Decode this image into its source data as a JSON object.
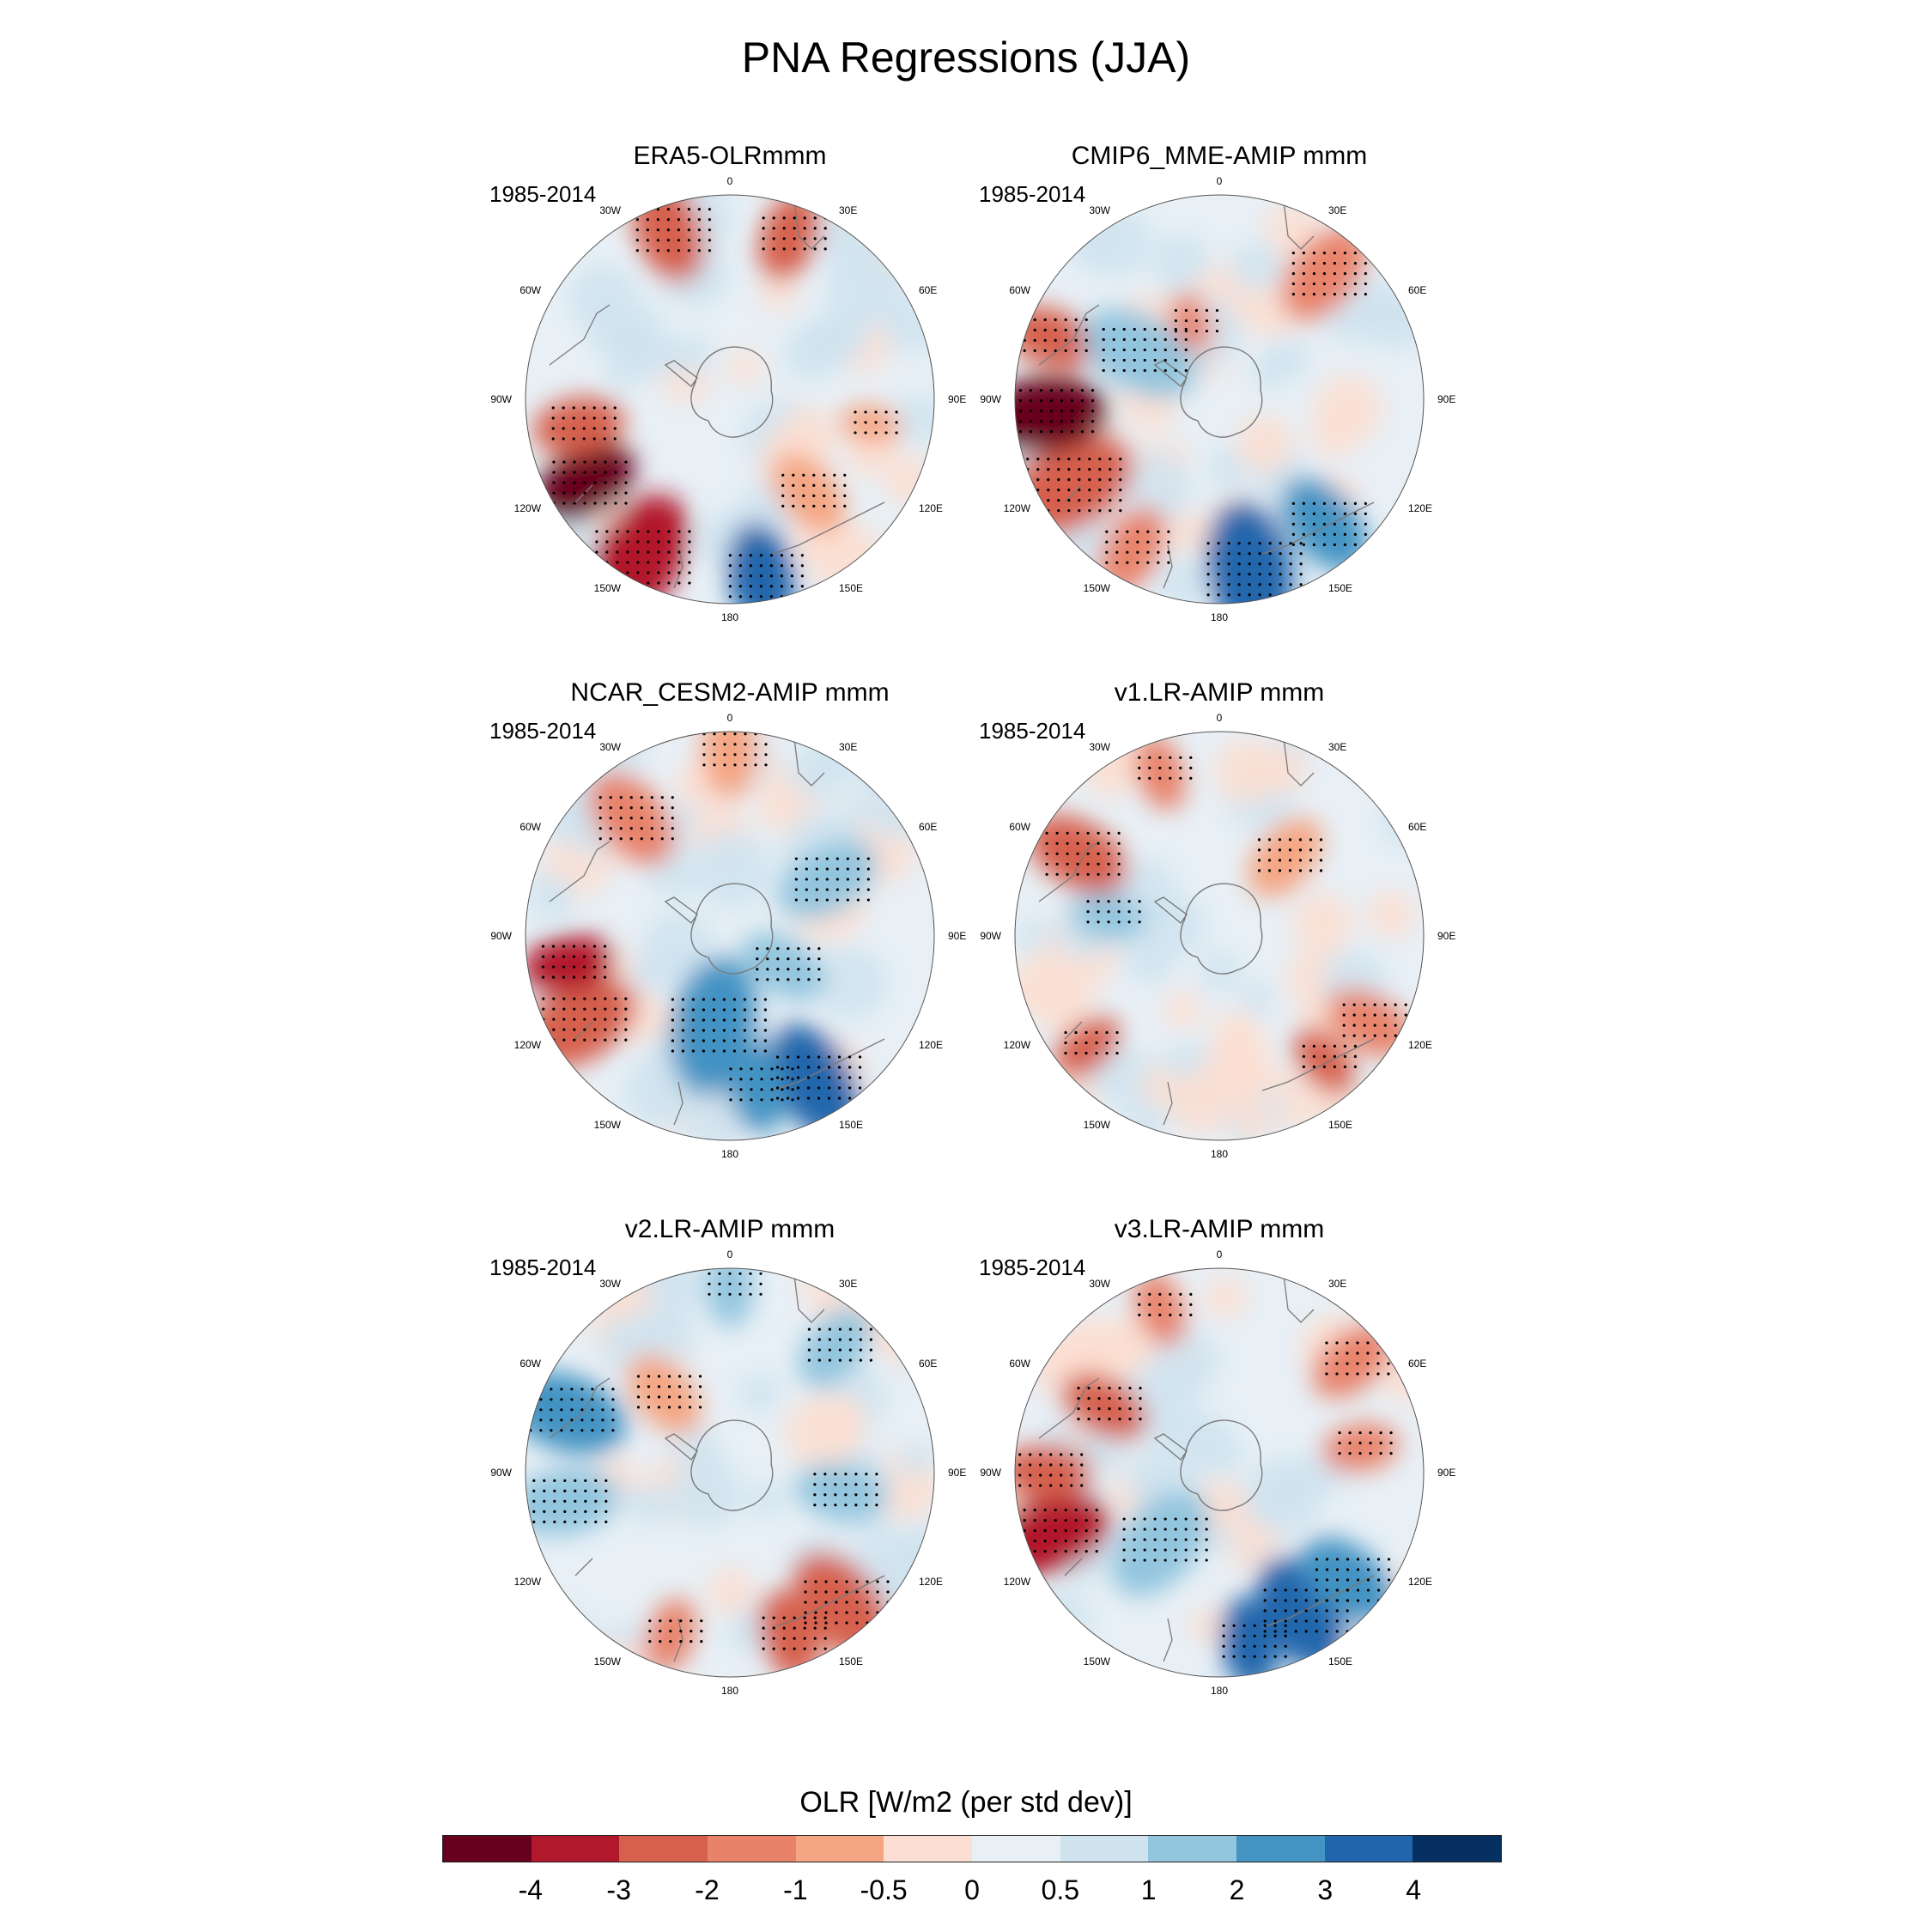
{
  "title": "PNA Regressions (JJA)",
  "chart_data": {
    "type": "contour-map",
    "projection": "south-polar-stereographic",
    "season": "JJA",
    "variable": "OLR",
    "panels": [
      {
        "title": "ERA5-OLRmmm",
        "period": "1985-2014"
      },
      {
        "title": "CMIP6_MME-AMIP  mmm",
        "period": "1985-2014"
      },
      {
        "title": "NCAR_CESM2-AMIP  mmm",
        "period": "1985-2014"
      },
      {
        "title": "v1.LR-AMIP  mmm",
        "period": "1985-2014"
      },
      {
        "title": "v2.LR-AMIP  mmm",
        "period": "1985-2014"
      },
      {
        "title": "v3.LR-AMIP  mmm",
        "period": "1985-2014"
      }
    ],
    "longitude_labels": [
      "0",
      "30E",
      "60E",
      "90E",
      "120E",
      "150E",
      "180",
      "150W",
      "120W",
      "90W",
      "60W",
      "30W"
    ],
    "colorbar": {
      "title": "OLR [W/m2 (per std dev)]",
      "levels": [
        "-4",
        "-3",
        "-2",
        "-1",
        "-0.5",
        "0",
        "0.5",
        "1",
        "2",
        "3",
        "4"
      ],
      "colors": [
        "#67001f",
        "#b2182b",
        "#d6604d",
        "#e8826a",
        "#f4a582",
        "#fcdfd2",
        "#e8f0f6",
        "#cfe3ef",
        "#92c5de",
        "#4393c3",
        "#2166ac",
        "#053061"
      ]
    }
  }
}
